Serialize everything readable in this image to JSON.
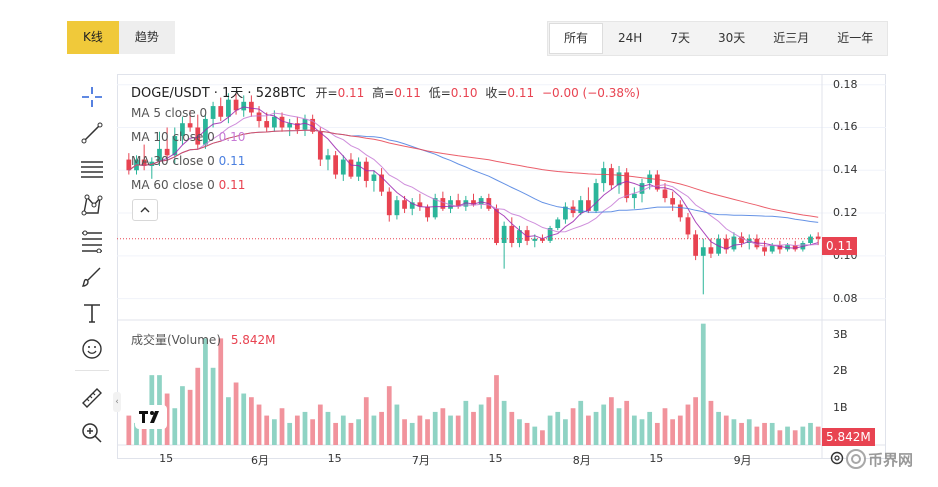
{
  "tabs": {
    "left": [
      {
        "label": "K线",
        "active": true
      },
      {
        "label": "趋势",
        "active": false
      }
    ],
    "right": [
      {
        "label": "所有",
        "active": true
      },
      {
        "label": "24H",
        "active": false
      },
      {
        "label": "7天",
        "active": false
      },
      {
        "label": "30天",
        "active": false
      },
      {
        "label": "近三月",
        "active": false
      },
      {
        "label": "近一年",
        "active": false
      }
    ]
  },
  "toolbar": {
    "items": [
      "crosshair-icon",
      "trend-line-icon",
      "horizontal-lines-icon",
      "pattern-icon",
      "fib-retracement-icon",
      "brush-icon",
      "text-icon",
      "emoji-icon",
      "ruler-icon",
      "zoom-in-icon"
    ]
  },
  "legend": {
    "symbol": "DOGE/USDT · 1天 · 528BTC",
    "open_label": "开=",
    "open": "0.11",
    "high_label": "高=",
    "high": "0.11",
    "low_label": "低=",
    "low": "0.10",
    "close_label": "收=",
    "close": "0.11",
    "change": "−0.00 (−0.38%)",
    "ma": [
      {
        "label": "MA 5 close 0",
        "value": "",
        "color": "#9c27b0"
      },
      {
        "label": "MA 10 close 0",
        "value": "0.10",
        "color": "#c77bd6"
      },
      {
        "label": "MA 30 close 0",
        "value": "0.11",
        "color": "#4a7fe0"
      },
      {
        "label": "MA 60 close 0",
        "value": "0.11",
        "color": "#e84351"
      }
    ],
    "volume_label": "成交量(Volume)",
    "volume_value": "5.842M"
  },
  "price_axis": {
    "ticks": [
      "0.18",
      "0.16",
      "0.14",
      "0.12",
      "0.10",
      "0.08"
    ],
    "current_tag": "0.11"
  },
  "volume_axis": {
    "ticks": [
      "3B",
      "2B",
      "1B"
    ],
    "current_tag": "5.842M"
  },
  "time_axis": {
    "ticks": [
      "15",
      "6月",
      "15",
      "7月",
      "15",
      "8月",
      "15",
      "9月"
    ]
  },
  "colors": {
    "up": "#2bb59a",
    "down": "#e84351",
    "up_vol": "#8fd3c4",
    "down_vol": "#f1939c"
  },
  "watermark": "币界网",
  "chart_data": {
    "type": "candlestick",
    "interval": "1天",
    "ylim": [
      0.07,
      0.185
    ],
    "volume_ylim": [
      0,
      3.4
    ],
    "x_ticks": [
      "15",
      "6月",
      "15",
      "7月",
      "15",
      "8月",
      "15",
      "9月"
    ],
    "ohlc": [
      [
        0.145,
        0.148,
        0.138,
        0.14
      ],
      [
        0.14,
        0.147,
        0.138,
        0.145
      ],
      [
        0.145,
        0.152,
        0.14,
        0.142
      ],
      [
        0.142,
        0.146,
        0.136,
        0.144
      ],
      [
        0.144,
        0.158,
        0.142,
        0.15
      ],
      [
        0.15,
        0.16,
        0.145,
        0.147
      ],
      [
        0.147,
        0.16,
        0.143,
        0.156
      ],
      [
        0.156,
        0.165,
        0.152,
        0.162
      ],
      [
        0.162,
        0.168,
        0.158,
        0.16
      ],
      [
        0.16,
        0.166,
        0.15,
        0.152
      ],
      [
        0.152,
        0.166,
        0.15,
        0.164
      ],
      [
        0.164,
        0.172,
        0.16,
        0.17
      ],
      [
        0.17,
        0.174,
        0.163,
        0.165
      ],
      [
        0.165,
        0.176,
        0.162,
        0.173
      ],
      [
        0.173,
        0.176,
        0.166,
        0.168
      ],
      [
        0.168,
        0.175,
        0.165,
        0.172
      ],
      [
        0.172,
        0.175,
        0.165,
        0.167
      ],
      [
        0.167,
        0.17,
        0.16,
        0.163
      ],
      [
        0.163,
        0.167,
        0.158,
        0.16
      ],
      [
        0.16,
        0.168,
        0.158,
        0.165
      ],
      [
        0.165,
        0.167,
        0.158,
        0.16
      ],
      [
        0.16,
        0.164,
        0.156,
        0.162
      ],
      [
        0.162,
        0.165,
        0.157,
        0.159
      ],
      [
        0.159,
        0.166,
        0.156,
        0.164
      ],
      [
        0.164,
        0.166,
        0.157,
        0.158
      ],
      [
        0.158,
        0.16,
        0.142,
        0.145
      ],
      [
        0.145,
        0.15,
        0.14,
        0.147
      ],
      [
        0.147,
        0.149,
        0.136,
        0.138
      ],
      [
        0.138,
        0.147,
        0.135,
        0.145
      ],
      [
        0.145,
        0.148,
        0.136,
        0.137
      ],
      [
        0.137,
        0.146,
        0.135,
        0.144
      ],
      [
        0.144,
        0.146,
        0.132,
        0.135
      ],
      [
        0.135,
        0.14,
        0.13,
        0.138
      ],
      [
        0.138,
        0.141,
        0.128,
        0.13
      ],
      [
        0.13,
        0.132,
        0.116,
        0.119
      ],
      [
        0.119,
        0.128,
        0.117,
        0.126
      ],
      [
        0.126,
        0.128,
        0.12,
        0.122
      ],
      [
        0.122,
        0.127,
        0.119,
        0.125
      ],
      [
        0.125,
        0.129,
        0.121,
        0.123
      ],
      [
        0.123,
        0.124,
        0.116,
        0.118
      ],
      [
        0.118,
        0.129,
        0.117,
        0.127
      ],
      [
        0.127,
        0.13,
        0.121,
        0.122
      ],
      [
        0.122,
        0.128,
        0.12,
        0.126
      ],
      [
        0.126,
        0.129,
        0.122,
        0.123
      ],
      [
        0.123,
        0.128,
        0.121,
        0.126
      ],
      [
        0.126,
        0.129,
        0.123,
        0.124
      ],
      [
        0.124,
        0.128,
        0.122,
        0.127
      ],
      [
        0.127,
        0.129,
        0.121,
        0.122
      ],
      [
        0.122,
        0.124,
        0.105,
        0.106
      ],
      [
        0.106,
        0.116,
        0.094,
        0.114
      ],
      [
        0.114,
        0.118,
        0.104,
        0.106
      ],
      [
        0.106,
        0.114,
        0.104,
        0.112
      ],
      [
        0.112,
        0.114,
        0.105,
        0.107
      ],
      [
        0.107,
        0.11,
        0.104,
        0.108
      ],
      [
        0.108,
        0.11,
        0.106,
        0.107
      ],
      [
        0.107,
        0.114,
        0.106,
        0.113
      ],
      [
        0.113,
        0.118,
        0.112,
        0.117
      ],
      [
        0.117,
        0.125,
        0.115,
        0.123
      ],
      [
        0.123,
        0.126,
        0.118,
        0.12
      ],
      [
        0.12,
        0.128,
        0.119,
        0.126
      ],
      [
        0.126,
        0.132,
        0.12,
        0.121
      ],
      [
        0.121,
        0.136,
        0.12,
        0.134
      ],
      [
        0.134,
        0.144,
        0.13,
        0.141
      ],
      [
        0.141,
        0.143,
        0.131,
        0.133
      ],
      [
        0.133,
        0.142,
        0.129,
        0.139
      ],
      [
        0.139,
        0.141,
        0.125,
        0.127
      ],
      [
        0.127,
        0.132,
        0.122,
        0.129
      ],
      [
        0.129,
        0.136,
        0.125,
        0.134
      ],
      [
        0.134,
        0.14,
        0.131,
        0.138
      ],
      [
        0.138,
        0.14,
        0.13,
        0.131
      ],
      [
        0.131,
        0.134,
        0.125,
        0.127
      ],
      [
        0.127,
        0.13,
        0.121,
        0.124
      ],
      [
        0.124,
        0.126,
        0.116,
        0.118
      ],
      [
        0.118,
        0.12,
        0.108,
        0.11
      ],
      [
        0.11,
        0.112,
        0.098,
        0.1
      ],
      [
        0.1,
        0.108,
        0.082,
        0.104
      ],
      [
        0.104,
        0.108,
        0.099,
        0.101
      ],
      [
        0.101,
        0.11,
        0.1,
        0.108
      ],
      [
        0.108,
        0.11,
        0.101,
        0.103
      ],
      [
        0.103,
        0.111,
        0.102,
        0.109
      ],
      [
        0.109,
        0.111,
        0.104,
        0.106
      ],
      [
        0.106,
        0.11,
        0.103,
        0.108
      ],
      [
        0.108,
        0.11,
        0.103,
        0.104
      ],
      [
        0.104,
        0.107,
        0.1,
        0.102
      ],
      [
        0.102,
        0.106,
        0.101,
        0.105
      ],
      [
        0.105,
        0.107,
        0.101,
        0.103
      ],
      [
        0.103,
        0.106,
        0.102,
        0.105
      ],
      [
        0.105,
        0.107,
        0.102,
        0.103
      ],
      [
        0.103,
        0.107,
        0.102,
        0.106
      ],
      [
        0.106,
        0.11,
        0.105,
        0.109
      ],
      [
        0.109,
        0.111,
        0.105,
        0.108
      ]
    ],
    "volume": [
      0.8,
      0.6,
      1.0,
      1.9,
      1.9,
      1.4,
      1.0,
      1.6,
      1.5,
      2.1,
      2.9,
      2.1,
      2.9,
      1.3,
      1.7,
      1.4,
      1.3,
      1.1,
      0.8,
      0.7,
      1.0,
      0.6,
      0.8,
      0.9,
      0.7,
      1.1,
      0.9,
      0.6,
      0.8,
      0.6,
      0.7,
      1.3,
      0.8,
      0.9,
      1.6,
      1.1,
      0.7,
      0.6,
      0.8,
      0.7,
      0.9,
      1.0,
      0.8,
      0.8,
      1.2,
      0.9,
      1.1,
      1.3,
      1.9,
      1.2,
      0.9,
      0.7,
      0.6,
      0.5,
      0.4,
      0.8,
      0.9,
      0.7,
      1.0,
      1.2,
      0.8,
      0.9,
      1.1,
      1.3,
      1.0,
      1.2,
      0.8,
      0.7,
      0.9,
      0.6,
      1.0,
      0.7,
      0.8,
      1.1,
      1.3,
      3.3,
      1.2,
      0.9,
      0.8,
      0.7,
      0.6,
      0.7,
      0.5,
      0.6,
      0.6,
      0.4,
      0.5,
      0.4,
      0.5,
      0.6,
      0.5
    ]
  }
}
